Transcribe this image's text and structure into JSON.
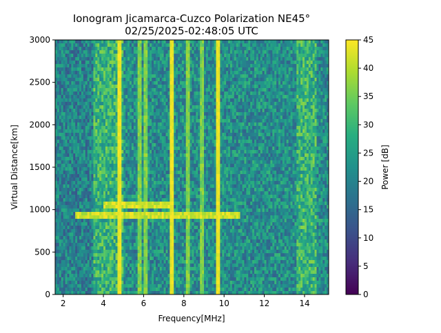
{
  "title_line1": "Ionogram Jicamarca-Cuzco Polarization NE45°",
  "title_line2": "02/25/2025-02:48:05 UTC",
  "chart_data": {
    "type": "heatmap",
    "xlabel": "Frequency[MHz]",
    "ylabel": "Virtual Distance[km]",
    "xlim": [
      1.6,
      15.2
    ],
    "ylim": [
      0,
      3000
    ],
    "xticks": [
      2,
      4,
      6,
      8,
      10,
      12,
      14
    ],
    "yticks": [
      0,
      500,
      1000,
      1500,
      2000,
      2500,
      3000
    ],
    "colorbar": {
      "label": "Power [dB]",
      "range": [
        0,
        45
      ],
      "ticks": [
        0,
        5,
        10,
        15,
        20,
        25,
        30,
        35,
        40,
        45
      ],
      "colormap": "viridis"
    },
    "strong_vertical_lines_mhz": [
      4.8,
      7.4,
      9.7
    ],
    "weak_vertical_lines_mhz": [
      5.8,
      6.1,
      8.2,
      8.9
    ],
    "high_noise_bands_mhz": [
      [
        3.5,
        5.0
      ],
      [
        13.6,
        14.6
      ]
    ],
    "echo_traces": [
      {
        "f_start": 4.0,
        "f_end": 7.5,
        "distance_km": 1050
      },
      {
        "f_start": 2.6,
        "f_end": 10.8,
        "distance_km": 940
      }
    ]
  }
}
